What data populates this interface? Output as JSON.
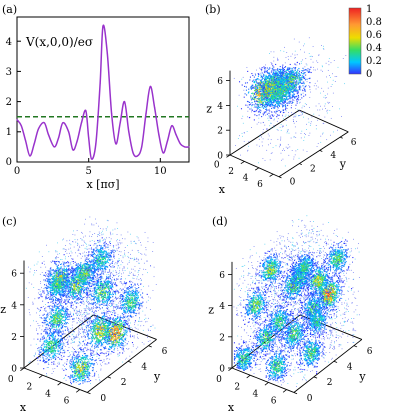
{
  "panels": [
    {
      "label": "(a)"
    },
    {
      "label": "(b)"
    },
    {
      "label": "(c)"
    },
    {
      "label": "(d)"
    }
  ],
  "colorbar": {
    "ticks": [
      "1",
      "0.8",
      "0.6",
      "0.4",
      "0.2",
      "0"
    ]
  },
  "cube_axes": {
    "x_label": "x",
    "y_label": "y",
    "z_label": "z",
    "ticks": [
      "0",
      "2",
      "4",
      "6"
    ]
  },
  "chart_data": [
    {
      "type": "line",
      "panel": "(a)",
      "annotation": "V(x,0,0)/eσ",
      "xlabel": "x  [πσ]",
      "xlim": [
        0,
        12
      ],
      "ylim": [
        0,
        4.8
      ],
      "xticks": [
        "0",
        "5",
        "10"
      ],
      "yticks": [
        "0",
        "1",
        "2",
        "3",
        "4"
      ],
      "reference_line": {
        "y": 1.5,
        "style": "dashed",
        "color": "#227722"
      },
      "line_color": "#9933cc",
      "x": [
        0,
        0.3,
        0.6,
        0.9,
        1.2,
        1.5,
        1.9,
        2.2,
        2.6,
        2.9,
        3.2,
        3.6,
        3.9,
        4.2,
        4.5,
        4.8,
        5.0,
        5.2,
        5.5,
        5.8,
        6.0,
        6.3,
        6.6,
        6.9,
        7.2,
        7.5,
        7.8,
        8.1,
        8.4,
        8.7,
        9.0,
        9.3,
        9.6,
        9.9,
        10.2,
        10.5,
        10.8,
        11.1,
        11.4,
        11.7,
        12.0
      ],
      "y": [
        1.4,
        1.2,
        0.7,
        0.2,
        0.6,
        1.1,
        1.3,
        0.9,
        0.5,
        0.8,
        1.3,
        1.0,
        0.4,
        0.7,
        1.3,
        1.7,
        0.8,
        0.1,
        0.6,
        2.6,
        4.5,
        3.6,
        1.6,
        0.6,
        1.3,
        2.0,
        1.0,
        0.3,
        0.2,
        0.5,
        1.6,
        2.5,
        1.8,
        0.9,
        0.3,
        0.7,
        1.2,
        0.9,
        0.6,
        0.5,
        0.5
      ]
    },
    {
      "type": "heatmap",
      "panel": "(b)",
      "colorbar_range": [
        0,
        1
      ],
      "blobs": [
        {
          "x": 2.8,
          "y": 1.3,
          "z": 5.2,
          "w": 1.0
        },
        {
          "x": 3.8,
          "y": 1.6,
          "z": 5.6,
          "w": 0.85
        },
        {
          "x": 4.6,
          "y": 1.9,
          "z": 5.9,
          "w": 0.75
        },
        {
          "x": 2.4,
          "y": 2.2,
          "z": 4.8,
          "w": 0.6
        },
        {
          "x": 5.4,
          "y": 2.2,
          "z": 6.2,
          "w": 0.5
        },
        {
          "x": 3.2,
          "y": 2.6,
          "z": 4.5,
          "w": 0.45
        }
      ]
    },
    {
      "type": "heatmap",
      "panel": "(c)",
      "blobs": [
        {
          "x": 5.8,
          "y": 3.6,
          "z": 1.8,
          "w": 1.0
        },
        {
          "x": 4.8,
          "y": 3.0,
          "z": 2.0,
          "w": 0.75
        },
        {
          "x": 1.0,
          "y": 2.5,
          "z": 4.6,
          "w": 0.7
        },
        {
          "x": 3.2,
          "y": 2.2,
          "z": 4.9,
          "w": 0.6
        },
        {
          "x": 4.8,
          "y": 1.5,
          "z": 6.4,
          "w": 0.55
        },
        {
          "x": 5.8,
          "y": 2.4,
          "z": 5.0,
          "w": 0.55
        },
        {
          "x": 2.4,
          "y": 1.0,
          "z": 3.2,
          "w": 0.5
        },
        {
          "x": 5.2,
          "y": 0.8,
          "z": 0.8,
          "w": 0.65
        },
        {
          "x": 1.6,
          "y": 1.2,
          "z": 1.2,
          "w": 0.45
        },
        {
          "x": 6.4,
          "y": 4.6,
          "z": 3.4,
          "w": 0.45
        },
        {
          "x": 3.8,
          "y": 4.0,
          "z": 5.8,
          "w": 0.4
        },
        {
          "x": 2.8,
          "y": 0.6,
          "z": 5.6,
          "w": 0.4
        }
      ]
    },
    {
      "type": "heatmap",
      "panel": "(d)",
      "blobs": [
        {
          "x": 6.2,
          "y": 4.0,
          "z": 4.2,
          "w": 1.0
        },
        {
          "x": 4.6,
          "y": 4.4,
          "z": 4.5,
          "w": 0.65
        },
        {
          "x": 2.0,
          "y": 2.0,
          "z": 5.8,
          "w": 0.6
        },
        {
          "x": 3.4,
          "y": 3.0,
          "z": 4.6,
          "w": 0.55
        },
        {
          "x": 1.0,
          "y": 1.4,
          "z": 3.6,
          "w": 0.55
        },
        {
          "x": 5.0,
          "y": 1.6,
          "z": 2.6,
          "w": 0.5
        },
        {
          "x": 2.8,
          "y": 0.8,
          "z": 2.2,
          "w": 0.5
        },
        {
          "x": 4.2,
          "y": 0.6,
          "z": 0.8,
          "w": 0.5
        },
        {
          "x": 6.0,
          "y": 2.4,
          "z": 1.2,
          "w": 0.5
        },
        {
          "x": 1.4,
          "y": 3.4,
          "z": 1.6,
          "w": 0.45
        },
        {
          "x": 3.8,
          "y": 4.6,
          "z": 2.4,
          "w": 0.45
        },
        {
          "x": 5.6,
          "y": 5.4,
          "z": 5.6,
          "w": 0.5
        },
        {
          "x": 2.2,
          "y": 4.8,
          "z": 4.0,
          "w": 0.45
        },
        {
          "x": 4.8,
          "y": 2.8,
          "z": 6.2,
          "w": 0.45
        },
        {
          "x": 0.8,
          "y": 0.4,
          "z": 0.6,
          "w": 0.45
        },
        {
          "x": 3.2,
          "y": 5.6,
          "z": 1.0,
          "w": 0.4
        }
      ]
    }
  ]
}
